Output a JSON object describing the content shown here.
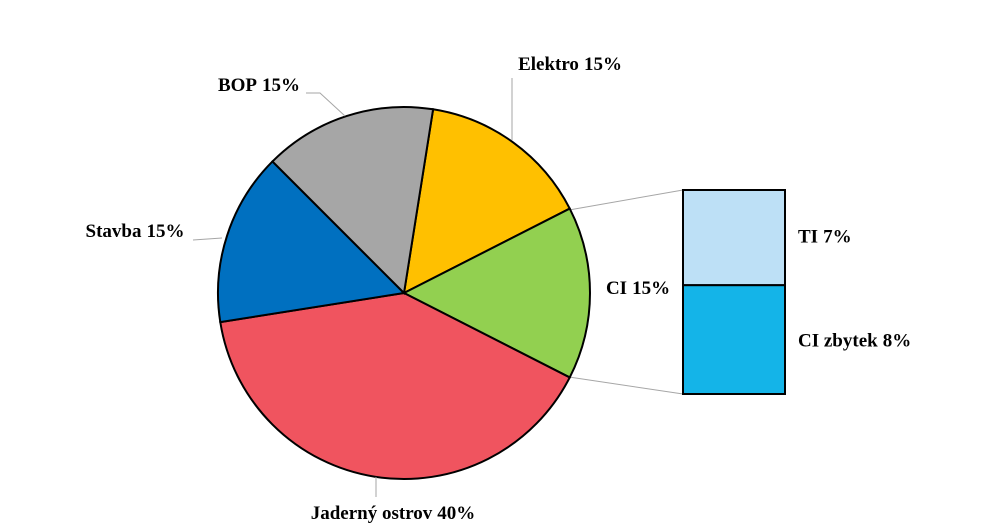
{
  "chart_data": {
    "type": "pie-of-bar",
    "categories": [
      "Elektro",
      "CI",
      "Jaderný ostrov",
      "Stavba",
      "BOP"
    ],
    "values": [
      15,
      15,
      40,
      15,
      15
    ],
    "value_labels": [
      "15%",
      "15%",
      "40%",
      "15%",
      "15%"
    ],
    "colors": [
      "#ffc000",
      "#92d050",
      "#f0545f",
      "#0070c0",
      "#a6a6a6"
    ],
    "breakdown": {
      "categories": [
        "TI",
        "CI zbytek"
      ],
      "values": [
        7,
        8
      ],
      "value_labels": [
        "7%",
        "8%"
      ],
      "colors": [
        "#bde0f6",
        "#14b4e8"
      ]
    }
  }
}
